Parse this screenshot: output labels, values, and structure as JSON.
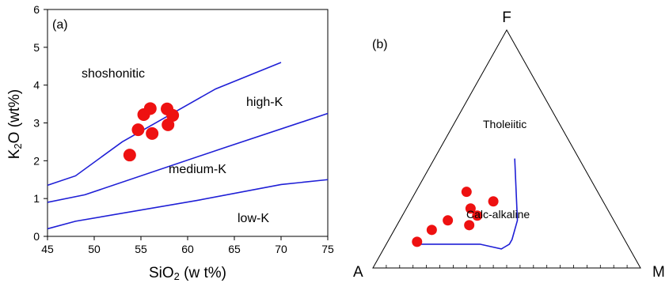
{
  "colors": {
    "boundary": "#1f1fd6",
    "sample": "#ee1111",
    "frame": "#000000"
  },
  "chart_data": [
    {
      "type": "scatter",
      "panel_label": "(a)",
      "xlabel_main": "SiO",
      "xlabel_sub": "2",
      "xlabel_rest": " (w t%)",
      "ylabel_main": "K",
      "ylabel_sub": "2",
      "ylabel_rest": "O (wt%)",
      "xlim": [
        45,
        75
      ],
      "ylim": [
        0,
        6
      ],
      "x_ticks": [
        "45",
        "50",
        "55",
        "60",
        "65",
        "70",
        "75"
      ],
      "y_ticks": [
        "0",
        "1",
        "2",
        "3",
        "4",
        "5",
        "6"
      ],
      "field_labels": [
        "shoshonitic",
        "high-K",
        "medium-K",
        "low-K"
      ],
      "boundaries": [
        {
          "points": [
            [
              45,
              1.35
            ],
            [
              48,
              1.6
            ],
            [
              53,
              2.5
            ],
            [
              63,
              3.9
            ],
            [
              70,
              4.6
            ]
          ]
        },
        {
          "points": [
            [
              45,
              0.9
            ],
            [
              49,
              1.1
            ],
            [
              64,
              2.35
            ],
            [
              75,
              3.25
            ]
          ]
        },
        {
          "points": [
            [
              45,
              0.2
            ],
            [
              48,
              0.4
            ],
            [
              61,
              0.95
            ],
            [
              70,
              1.37
            ],
            [
              75,
              1.5
            ]
          ]
        }
      ],
      "samples": [
        {
          "x": 53.8,
          "y": 2.15
        },
        {
          "x": 54.7,
          "y": 2.82
        },
        {
          "x": 55.3,
          "y": 3.22
        },
        {
          "x": 56.0,
          "y": 3.38
        },
        {
          "x": 56.2,
          "y": 2.72
        },
        {
          "x": 57.8,
          "y": 3.37
        },
        {
          "x": 57.9,
          "y": 2.95
        },
        {
          "x": 58.4,
          "y": 3.2
        }
      ]
    },
    {
      "type": "scatter",
      "panel_label": "(b)",
      "vertex_labels": {
        "top": "F",
        "left": "A",
        "right": "M"
      },
      "field_labels": [
        "Tholeiitic",
        "Calc-alkaline"
      ],
      "boundary_afm": [
        [
          0.78,
          0.1,
          0.12
        ],
        [
          0.55,
          0.1,
          0.35
        ],
        [
          0.48,
          0.08,
          0.44
        ],
        [
          0.44,
          0.1,
          0.46
        ],
        [
          0.42,
          0.12,
          0.46
        ],
        [
          0.36,
          0.2,
          0.44
        ],
        [
          0.24,
          0.46,
          0.3
        ]
      ],
      "samples_afm": [
        [
          0.78,
          0.11,
          0.11
        ],
        [
          0.7,
          0.16,
          0.14
        ],
        [
          0.62,
          0.2,
          0.18
        ],
        [
          0.55,
          0.18,
          0.27
        ],
        [
          0.5,
          0.22,
          0.28
        ],
        [
          0.51,
          0.25,
          0.24
        ],
        [
          0.49,
          0.32,
          0.19
        ],
        [
          0.41,
          0.28,
          0.31
        ]
      ],
      "bottom_ticks": 20
    }
  ]
}
